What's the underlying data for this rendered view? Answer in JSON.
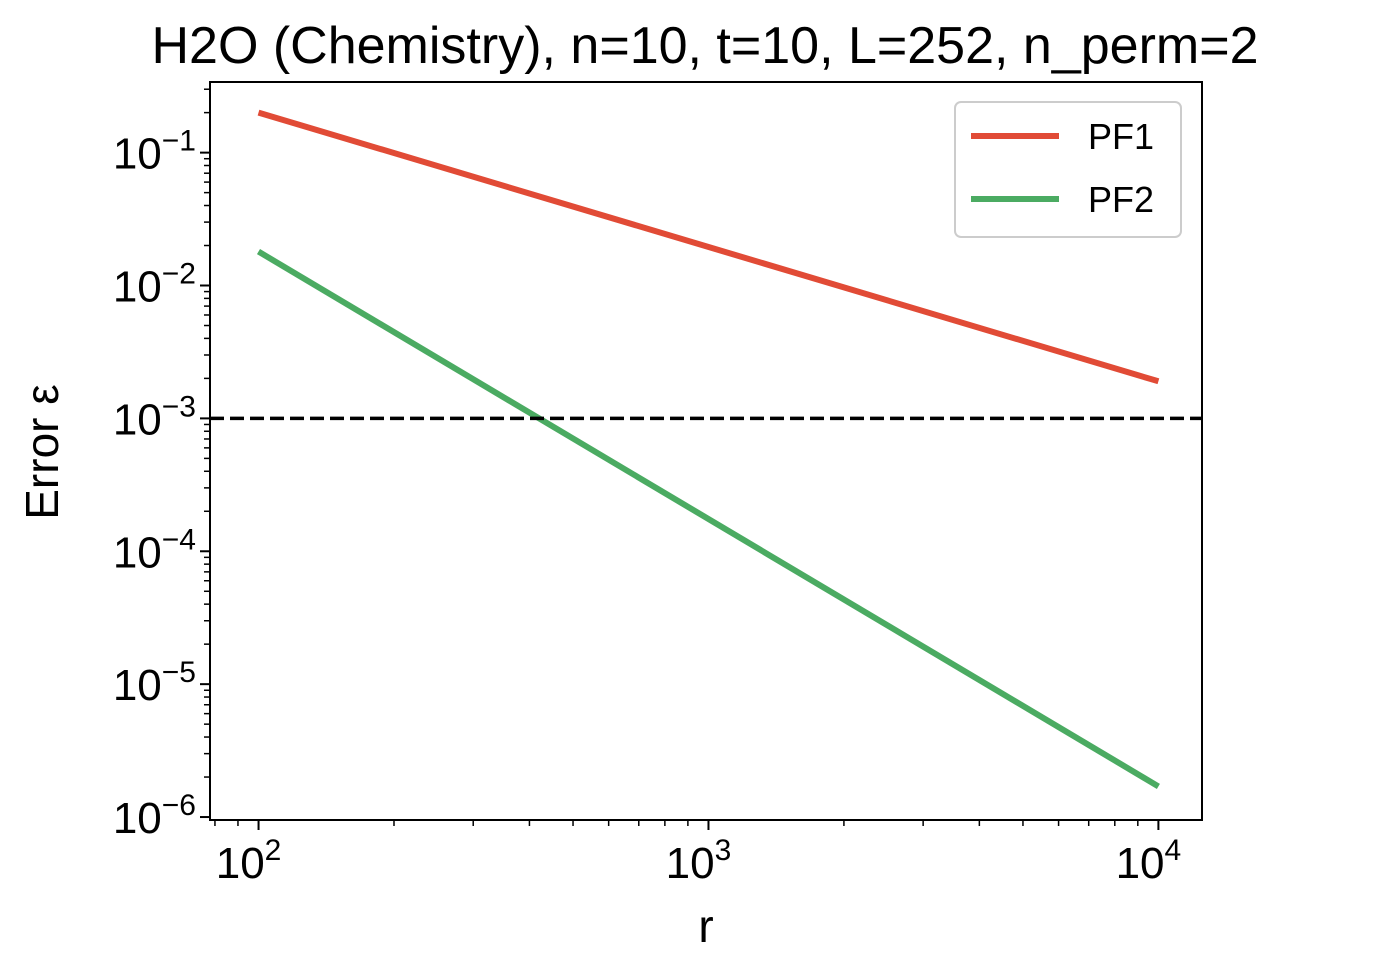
{
  "chart_data": {
    "type": "line",
    "title": "H2O (Chemistry), n=10, t=10, L=252, n_perm=2",
    "xlabel": "r",
    "ylabel": "Error ε",
    "xscale": "log",
    "yscale": "log",
    "xlim": [
      78,
      12500
    ],
    "ylim": [
      9.5e-07,
      0.34
    ],
    "xticks": [
      {
        "value": 100,
        "base": "10",
        "exp": "2"
      },
      {
        "value": 1000,
        "base": "10",
        "exp": "3"
      },
      {
        "value": 10000,
        "base": "10",
        "exp": "4"
      }
    ],
    "yticks": [
      {
        "value": 1e-06,
        "base": "10",
        "exp": "−6"
      },
      {
        "value": 1e-05,
        "base": "10",
        "exp": "−5"
      },
      {
        "value": 0.0001,
        "base": "10",
        "exp": "−4"
      },
      {
        "value": 0.001,
        "base": "10",
        "exp": "−3"
      },
      {
        "value": 0.01,
        "base": "10",
        "exp": "−2"
      },
      {
        "value": 0.1,
        "base": "10",
        "exp": "−1"
      }
    ],
    "grid": false,
    "legend_position": "top-right",
    "series": [
      {
        "name": "PF1",
        "color": "#e14b36",
        "x": [
          100,
          10000
        ],
        "y": [
          0.2,
          0.0019
        ]
      },
      {
        "name": "PF2",
        "color": "#4bab62",
        "x": [
          100,
          10000
        ],
        "y": [
          0.018,
          1.7e-06
        ]
      }
    ],
    "reference_lines": [
      {
        "orientation": "horizontal",
        "y": 0.001,
        "style": "dashed",
        "color": "#000000"
      }
    ]
  }
}
